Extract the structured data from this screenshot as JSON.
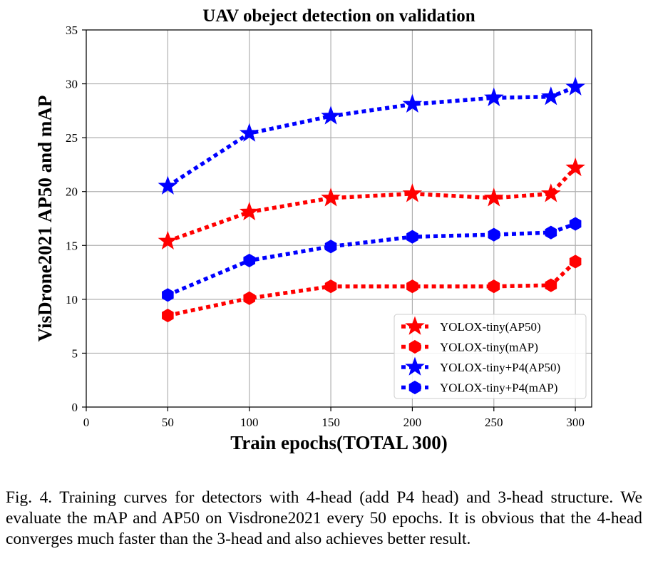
{
  "chart_data": {
    "type": "line",
    "title": "UAV obeject detection on validation",
    "xlabel": "Train epochs(TOTAL 300)",
    "ylabel": "VisDrone2021 AP50 and mAP",
    "xlim": [
      0,
      310
    ],
    "ylim": [
      0,
      35
    ],
    "xticks": [
      0,
      50,
      100,
      150,
      200,
      250,
      300
    ],
    "yticks": [
      0,
      5,
      10,
      15,
      20,
      25,
      30,
      35
    ],
    "grid": true,
    "legend_position": "lower right",
    "x": [
      50,
      100,
      150,
      200,
      250,
      285,
      300
    ],
    "series": [
      {
        "name": "YOLOX-tiny(AP50)",
        "color": "#ff0000",
        "marker": "star",
        "values": [
          15.4,
          18.1,
          19.4,
          19.8,
          19.4,
          19.8,
          22.2
        ]
      },
      {
        "name": "YOLOX-tiny(mAP)",
        "color": "#ff0000",
        "marker": "hexagon",
        "values": [
          8.5,
          10.1,
          11.2,
          11.2,
          11.2,
          11.3,
          13.5
        ]
      },
      {
        "name": "YOLOX-tiny+P4(AP50)",
        "color": "#0000ff",
        "marker": "star",
        "values": [
          20.5,
          25.4,
          27.0,
          28.1,
          28.7,
          28.8,
          29.7
        ]
      },
      {
        "name": "YOLOX-tiny+P4(mAP)",
        "color": "#0000ff",
        "marker": "hexagon",
        "values": [
          10.4,
          13.6,
          14.9,
          15.8,
          16.0,
          16.2,
          17.0
        ]
      }
    ]
  },
  "caption": {
    "text": "Fig. 4.  Training curves for detectors with 4-head (add P4 head) and 3-head structure. We evaluate the mAP and AP50 on Visdrone2021 every 50 epochs. It is obvious that the 4-head converges much faster than the 3-head and also achieves better result."
  }
}
